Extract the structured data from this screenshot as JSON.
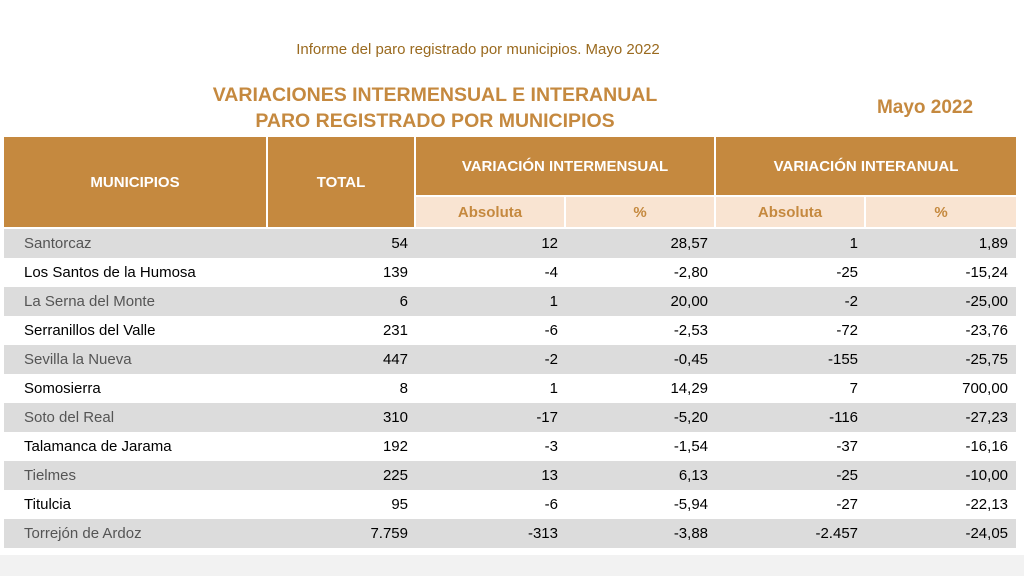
{
  "report_title": "Informe del paro registrado por municipios. Mayo 2022",
  "main_title": {
    "line1": "VARIACIONES INTERMENSUAL E INTERANUAL",
    "line2": "PARO REGISTRADO POR MUNICIPIOS"
  },
  "date_label": "Mayo 2022",
  "table": {
    "headers": {
      "municipios": "MUNICIPIOS",
      "total": "TOTAL",
      "intermensual": "VARIACIÓN INTERMENSUAL",
      "interanual": "VARIACIÓN INTERANUAL",
      "absoluta": "Absoluta",
      "percent": "%"
    },
    "rows": [
      {
        "name": "Santorcaz",
        "total": "54",
        "im_abs": "12",
        "im_pct": "28,57",
        "ia_abs": "1",
        "ia_pct": "1,89"
      },
      {
        "name": "Los Santos de la Humosa",
        "total": "139",
        "im_abs": "-4",
        "im_pct": "-2,80",
        "ia_abs": "-25",
        "ia_pct": "-15,24"
      },
      {
        "name": "La Serna del Monte",
        "total": "6",
        "im_abs": "1",
        "im_pct": "20,00",
        "ia_abs": "-2",
        "ia_pct": "-25,00"
      },
      {
        "name": "Serranillos del Valle",
        "total": "231",
        "im_abs": "-6",
        "im_pct": "-2,53",
        "ia_abs": "-72",
        "ia_pct": "-23,76"
      },
      {
        "name": "Sevilla la Nueva",
        "total": "447",
        "im_abs": "-2",
        "im_pct": "-0,45",
        "ia_abs": "-155",
        "ia_pct": "-25,75"
      },
      {
        "name": "Somosierra",
        "total": "8",
        "im_abs": "1",
        "im_pct": "14,29",
        "ia_abs": "7",
        "ia_pct": "700,00"
      },
      {
        "name": "Soto del Real",
        "total": "310",
        "im_abs": "-17",
        "im_pct": "-5,20",
        "ia_abs": "-116",
        "ia_pct": "-27,23"
      },
      {
        "name": "Talamanca de Jarama",
        "total": "192",
        "im_abs": "-3",
        "im_pct": "-1,54",
        "ia_abs": "-37",
        "ia_pct": "-16,16"
      },
      {
        "name": "Tielmes",
        "total": "225",
        "im_abs": "13",
        "im_pct": "6,13",
        "ia_abs": "-25",
        "ia_pct": "-10,00"
      },
      {
        "name": "Titulcia",
        "total": "95",
        "im_abs": "-6",
        "im_pct": "-5,94",
        "ia_abs": "-27",
        "ia_pct": "-22,13"
      },
      {
        "name": "Torrejón de Ardoz",
        "total": "7.759",
        "im_abs": "-313",
        "im_pct": "-3,88",
        "ia_abs": "-2.457",
        "ia_pct": "-24,05"
      }
    ]
  },
  "colors": {
    "header_bg": "#c5893f",
    "subheader_bg": "#f9e4d2",
    "title": "#c5893f",
    "stripe": "#dcdcdc"
  }
}
